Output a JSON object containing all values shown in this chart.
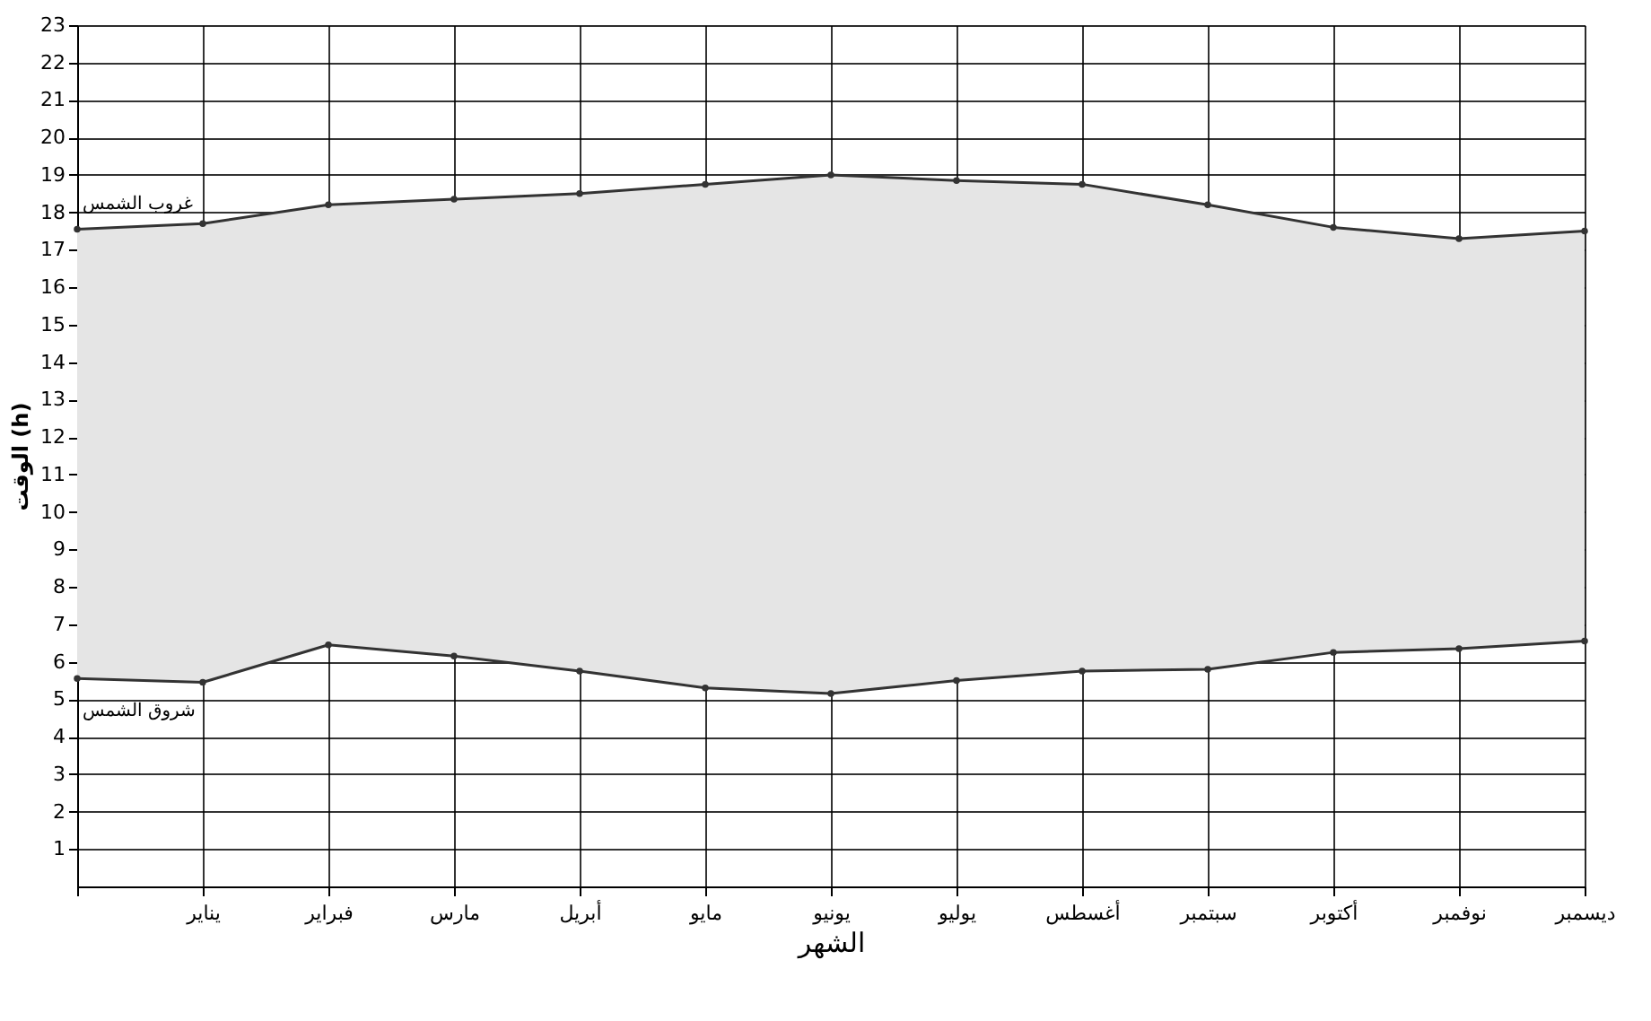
{
  "chart_data": {
    "type": "line",
    "xlabel": "الشهر",
    "ylabel": "الوقت (h)",
    "categories": [
      null,
      "يناير",
      "فبراير",
      "مارس",
      "أبريل",
      "مايو",
      "يونيو",
      "يوليو",
      "أغسطس",
      "سبتمبر",
      "أكتوبر",
      "نوفمبر",
      "ديسمبر"
    ],
    "series": [
      {
        "name": "غروب الشمس",
        "color": "#333333",
        "values": [
          17.55,
          17.7,
          18.2,
          18.35,
          18.5,
          18.75,
          19.0,
          18.85,
          18.75,
          18.2,
          17.6,
          17.3,
          17.5
        ],
        "lower": [
          5.55,
          5.45,
          6.45,
          6.15,
          5.75,
          5.3,
          5.15,
          5.5,
          5.75,
          5.8,
          6.25,
          6.35,
          6.55
        ],
        "upper": [
          17.55,
          17.7,
          18.2,
          18.35,
          18.5,
          18.75,
          19.0,
          18.85,
          18.75,
          18.2,
          17.6,
          17.3,
          17.5
        ]
      },
      {
        "name": "شروق الشمس",
        "color": "#333333",
        "values": [
          5.55,
          5.45,
          6.45,
          6.15,
          5.75,
          5.3,
          5.15,
          5.5,
          5.75,
          5.8,
          6.25,
          6.35,
          6.55
        ]
      }
    ],
    "ylim": [
      0,
      23
    ],
    "yticks": [
      1,
      2,
      3,
      4,
      5,
      6,
      7,
      8,
      9,
      10,
      11,
      12,
      13,
      14,
      15,
      16,
      17,
      18,
      19,
      20,
      21,
      22,
      23
    ],
    "grid": true,
    "legend": false,
    "marker": "circle",
    "line_style": "solid"
  }
}
